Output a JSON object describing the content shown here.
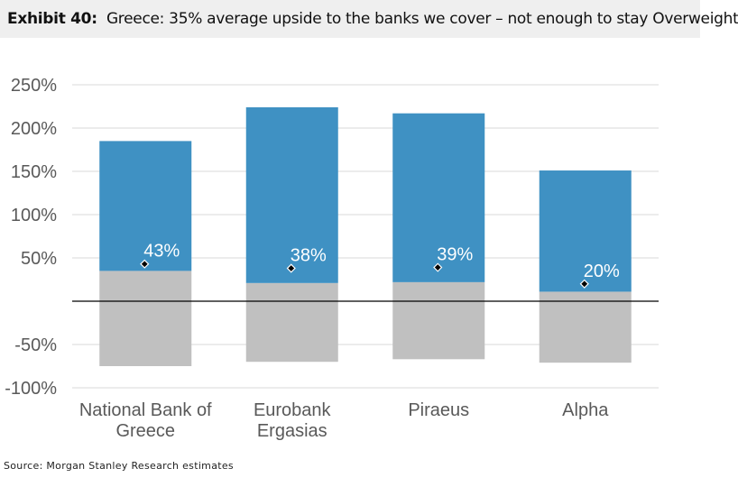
{
  "header": {
    "exhibit_label": "Exhibit 40:",
    "title": "Greece: 35% average upside to the banks we cover – not enough to stay Overweight"
  },
  "source": "Source: Morgan Stanley Research estimates",
  "chart_data": {
    "type": "bar",
    "title": "",
    "xlabel": "",
    "ylabel": "",
    "ylim": [
      -100,
      250
    ],
    "yticks": [
      250,
      200,
      150,
      100,
      50,
      -50,
      -100
    ],
    "ytick_labels": [
      "250%",
      "200%",
      "150%",
      "100%",
      "50%",
      "-50%",
      "-100%"
    ],
    "grid": true,
    "legend": "none",
    "categories": [
      [
        "National Bank of",
        "Greece"
      ],
      [
        "Eurobank",
        "Ergasias"
      ],
      [
        "Piraeus"
      ],
      [
        "Alpha"
      ]
    ],
    "series": [
      {
        "bull_high": [
          185,
          224,
          217,
          151
        ]
      },
      {
        "base_low": [
          35,
          21,
          22,
          11
        ]
      },
      {
        "bear_low": [
          -75,
          -70,
          -67,
          -71
        ]
      }
    ],
    "points": [
      43,
      38,
      39,
      20
    ],
    "point_labels": [
      "43%",
      "38%",
      "39%",
      "20%"
    ],
    "colors": {
      "upper": "#3f91c3",
      "lower": "#c0c0c0",
      "grid": "#d9d9d9",
      "axis": "#000000"
    }
  }
}
